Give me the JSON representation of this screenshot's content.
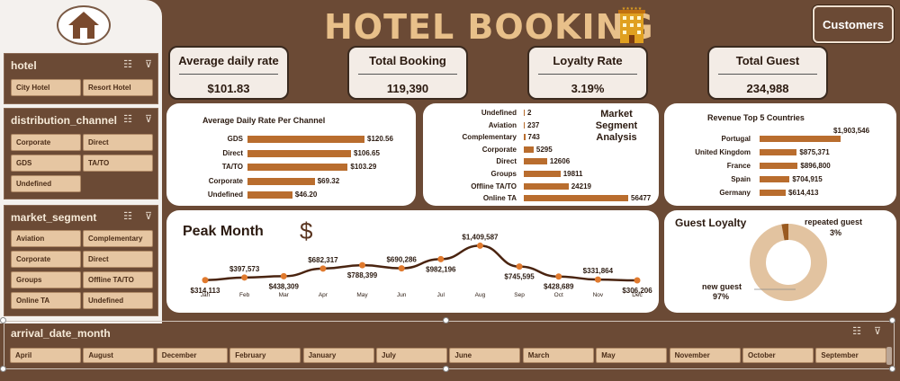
{
  "title": "HOTEL BOOKING",
  "customers_button": "Customers",
  "slicers": {
    "hotel": {
      "title": "hotel",
      "items": [
        "City Hotel",
        "Resort Hotel"
      ]
    },
    "distribution_channel": {
      "title": "distribution_channel",
      "items": [
        "Corporate",
        "Direct",
        "GDS",
        "TA/TO",
        "Undefined"
      ]
    },
    "market_segment": {
      "title": "market_segment",
      "items": [
        "Aviation",
        "Complementary",
        "Corporate",
        "Direct",
        "Groups",
        "Offline TA/TO",
        "Online TA",
        "Undefined"
      ]
    },
    "arrival_date_month": {
      "title": "arrival_date_month",
      "items": [
        "April",
        "August",
        "December",
        "February",
        "January",
        "July",
        "June",
        "March",
        "May",
        "November",
        "October",
        "September"
      ]
    }
  },
  "kpis": [
    {
      "label": "Average daily rate",
      "value": "$101.83"
    },
    {
      "label": "Total Booking",
      "value": "119,390"
    },
    {
      "label": "Loyalty Rate",
      "value": "3.19%"
    },
    {
      "label": "Total Guest",
      "value": "234,988"
    }
  ],
  "adr_chart": {
    "title": "Average Daily Rate Per Channel",
    "rows": [
      {
        "label": "GDS",
        "value": 120.56,
        "text": "$120.56"
      },
      {
        "label": "Direct",
        "value": 106.65,
        "text": "$106.65"
      },
      {
        "label": "TA/TO",
        "value": 103.29,
        "text": "$103.29"
      },
      {
        "label": "Corporate",
        "value": 69.32,
        "text": "$69.32"
      },
      {
        "label": "Undefined",
        "value": 46.2,
        "text": "$46.20"
      }
    ]
  },
  "segment_chart": {
    "title": "Market Segment Analysis",
    "rows": [
      {
        "label": "Undefined",
        "value": 2,
        "text": "2"
      },
      {
        "label": "Aviation",
        "value": 237,
        "text": "237"
      },
      {
        "label": "Complementary",
        "value": 743,
        "text": "743"
      },
      {
        "label": "Corporate",
        "value": 5295,
        "text": "5295"
      },
      {
        "label": "Direct",
        "value": 12606,
        "text": "12606"
      },
      {
        "label": "Groups",
        "value": 19811,
        "text": "19811"
      },
      {
        "label": "Offline TA/TO",
        "value": 24219,
        "text": "24219"
      },
      {
        "label": "Online TA",
        "value": 56477,
        "text": "56477"
      }
    ]
  },
  "country_chart": {
    "title": "Revenue Top 5 Countries",
    "rows": [
      {
        "label": "Portugal",
        "value": 1903546,
        "text": "$1,903,546"
      },
      {
        "label": "United Kingdom",
        "value": 875371,
        "text": "$875,371"
      },
      {
        "label": "France",
        "value": 896800,
        "text": "$896,800"
      },
      {
        "label": "Spain",
        "value": 704915,
        "text": "$704,915"
      },
      {
        "label": "Germany",
        "value": 614413,
        "text": "$614,413"
      }
    ]
  },
  "peak_month": {
    "title": "Peak Month",
    "dollar_icon": "$",
    "months": [
      "Jan",
      "Feb",
      "Mar",
      "Apr",
      "May",
      "Jun",
      "Jul",
      "Aug",
      "Sep",
      "Oct",
      "Nov",
      "Dec"
    ],
    "values": [
      314113,
      397573,
      438309,
      682317,
      788399,
      690286,
      982196,
      1409587,
      745595,
      428689,
      331864,
      306206
    ],
    "labels": [
      "$314,113",
      "$397,573",
      "$438,309",
      "$682,317",
      "$788,399",
      "$690,286",
      "$982,196",
      "$1,409,587",
      "$745,595",
      "$428,689",
      "$331,864",
      "$306,206"
    ]
  },
  "guest_loyalty": {
    "title": "Guest Loyalty",
    "repeated_label": "repeated guest",
    "repeated_pct": "3%",
    "repeated_value": 3,
    "new_label": "new guest",
    "new_pct": "97%",
    "new_value": 97
  },
  "colors": {
    "background": "#6b4a35",
    "bar": "#b96d2e",
    "accent": "#e8c08a",
    "chip": "#e6c6a2"
  }
}
